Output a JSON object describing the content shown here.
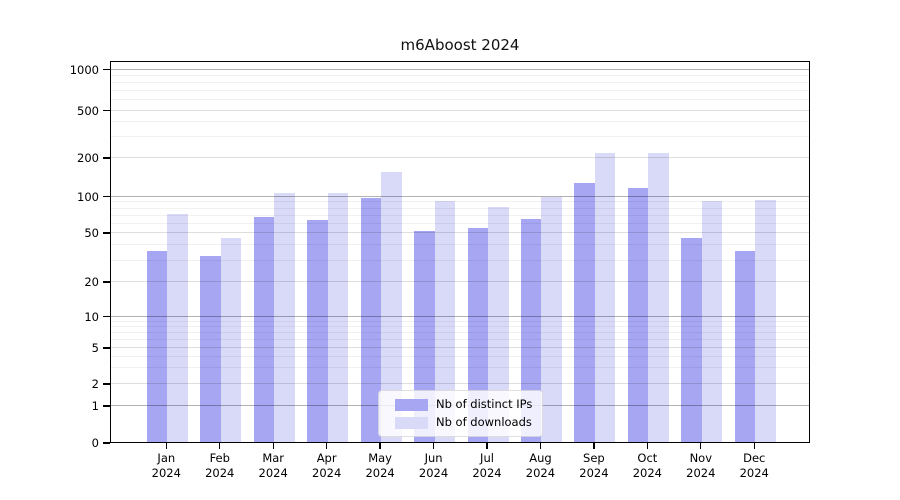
{
  "figure": {
    "background": "#ffffff",
    "spine_color": "#000000"
  },
  "chart_data": {
    "type": "bar",
    "title": "m6Aboost 2024",
    "xlabel": "",
    "ylabel": "",
    "year": "2024",
    "categories": [
      "Jan",
      "Feb",
      "Mar",
      "Apr",
      "May",
      "Jun",
      "Jul",
      "Aug",
      "Sep",
      "Oct",
      "Nov",
      "Dec"
    ],
    "series": [
      {
        "key": "distinct-ips",
        "name": "Nb of distinct IPs",
        "color": "#a6a6f2",
        "values": [
          35,
          32,
          67,
          63,
          95,
          51,
          54,
          64,
          125,
          114,
          45,
          35
        ]
      },
      {
        "key": "downloads",
        "name": "Nb of downloads",
        "color": "#d9d9f8",
        "values": [
          71,
          45,
          104,
          104,
          153,
          91,
          81,
          97,
          217,
          217,
          91,
          92
        ]
      }
    ],
    "yscale": "symlog",
    "yticks": [
      0,
      1,
      2,
      5,
      10,
      20,
      50,
      100,
      200,
      500,
      1000
    ],
    "ylim": [
      0,
      1150
    ],
    "grid": true,
    "legend_position": "lower-center"
  }
}
